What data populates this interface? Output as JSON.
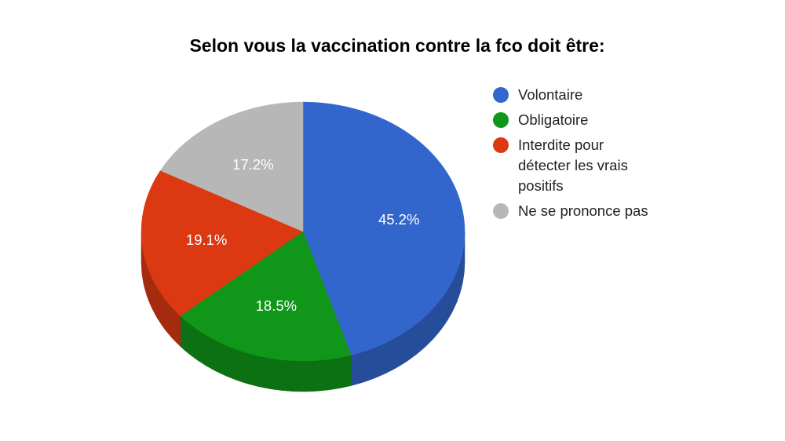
{
  "chart_data": {
    "type": "pie",
    "title": "Selon vous la vaccination contre la fco doit être:",
    "three_d": true,
    "start_angle": "12 o'clock, clockwise",
    "legend_position": "right",
    "slices": [
      {
        "label": "Volontaire",
        "value": 45.2,
        "display": "45.2%",
        "color": "#3366cc",
        "side_color": "#254d9a"
      },
      {
        "label": "Obligatoire",
        "value": 18.5,
        "display": "18.5%",
        "color": "#109618",
        "side_color": "#0c7112"
      },
      {
        "label": "Interdite pour détecter les vrais positifs",
        "value": 19.1,
        "display": "19.1%",
        "color": "#dc3912",
        "side_color": "#a52b0e"
      },
      {
        "label": "Ne se prononce pas",
        "value": 17.2,
        "display": "17.2%",
        "color": "#b7b7b7",
        "side_color": "#8a8a8a"
      }
    ]
  },
  "legend": {
    "items": [
      {
        "label": "Volontaire",
        "color": "#3366cc"
      },
      {
        "label": "Obligatoire",
        "color": "#109618"
      },
      {
        "label": "Interdite pour détecter les vrais positifs",
        "color": "#dc3912"
      },
      {
        "label": "Ne se prononce pas",
        "color": "#b7b7b7"
      }
    ]
  }
}
